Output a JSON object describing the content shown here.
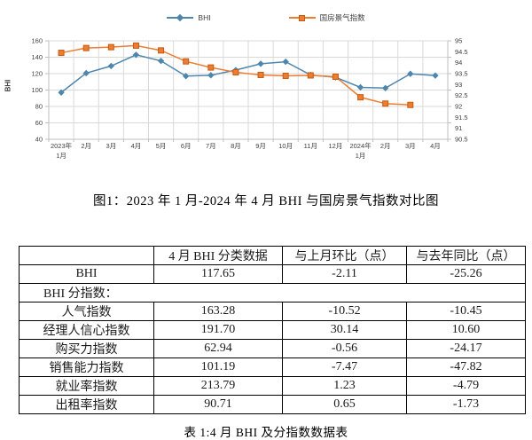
{
  "figure_caption": "图1：2023 年 1 月-2024 年 4 月 BHI 与国房景气指数对比图",
  "table_caption": "表 1:4 月 BHI 及分指数数据表",
  "chart_data": {
    "type": "line",
    "title": "",
    "xlabel": "",
    "ylabel": "BHI",
    "legend_position": "top",
    "grid": true,
    "grid_color": "#d9d9d9",
    "axis_color": "#bfbfbf",
    "categories": [
      [
        "2023年",
        "1月"
      ],
      "2月",
      "3月",
      "4月",
      "5月",
      "6月",
      "7月",
      "8月",
      "9月",
      "10月",
      "11月",
      "12月",
      [
        "2024年",
        "1月"
      ],
      "2月",
      "3月",
      "4月"
    ],
    "y_left": {
      "min": 40,
      "max": 160,
      "step": 20
    },
    "y_right": {
      "min": 90.5,
      "max": 95,
      "step": 0.5
    },
    "series": [
      {
        "name": "BHI",
        "axis": "left",
        "color": "#4e86ac",
        "marker": "diamond",
        "values": [
          97.0,
          120.6,
          129.3,
          142.91,
          135.5,
          117.0,
          118.0,
          124.3,
          132.0,
          134.5,
          118.3,
          115.5,
          103.3,
          102.4,
          119.76,
          117.65
        ]
      },
      {
        "name": "国房景气指数",
        "axis": "right",
        "color": "#ed7d31",
        "marker": "square",
        "marker_stroke": "#c55a11",
        "values": [
          94.45,
          94.67,
          94.71,
          94.78,
          94.56,
          94.06,
          93.78,
          93.56,
          93.44,
          93.4,
          93.42,
          93.36,
          92.42,
          92.13,
          92.07,
          null
        ]
      }
    ]
  },
  "table": {
    "headers": [
      "",
      "4 月 BHI 分类数据",
      "与上月环比（点）",
      "与去年同比（点）"
    ],
    "section_label": "BHI 分指数：",
    "rows": [
      {
        "label": "BHI",
        "value": "117.65",
        "mom": "-2.11",
        "yoy": "-25.26"
      },
      {
        "label": "人气指数",
        "value": "163.28",
        "mom": "-10.52",
        "yoy": "-10.45"
      },
      {
        "label": "经理人信心指数",
        "value": "191.70",
        "mom": "30.14",
        "yoy": "10.60"
      },
      {
        "label": "购买力指数",
        "value": "62.94",
        "mom": "-0.56",
        "yoy": "-24.17"
      },
      {
        "label": "销售能力指数",
        "value": "101.19",
        "mom": "-7.47",
        "yoy": "-47.82"
      },
      {
        "label": "就业率指数",
        "value": "213.79",
        "mom": "1.23",
        "yoy": "-4.79"
      },
      {
        "label": "出租率指数",
        "value": "90.71",
        "mom": "0.65",
        "yoy": "-1.73"
      }
    ]
  }
}
